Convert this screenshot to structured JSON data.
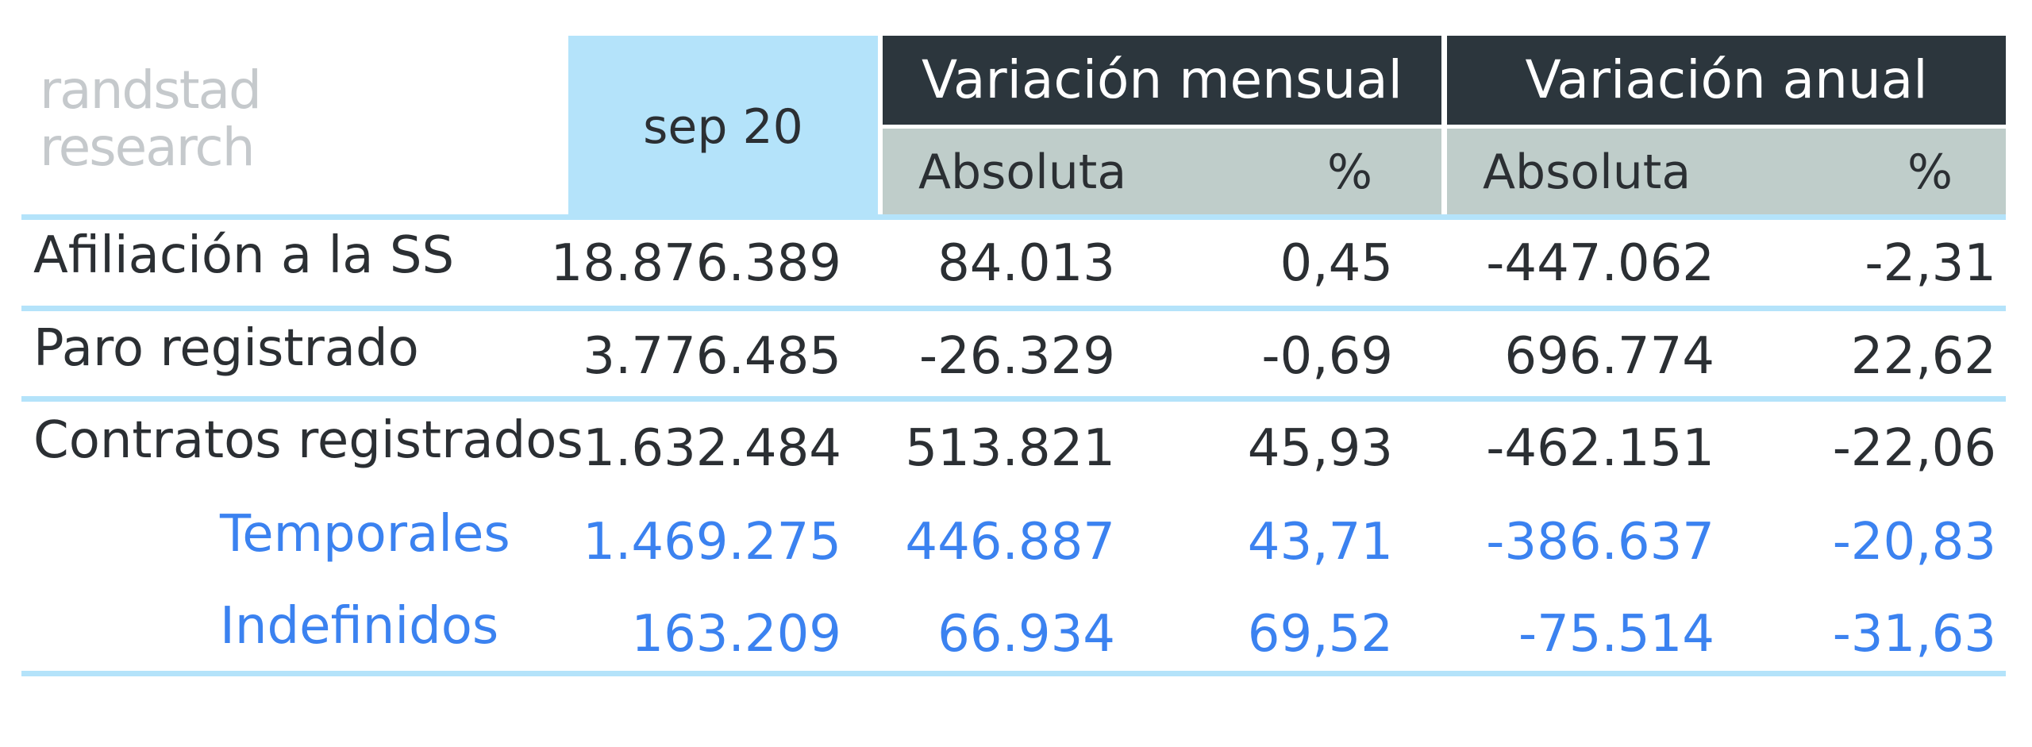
{
  "chart_data": {
    "type": "table",
    "logo_text": [
      "randstad",
      "research"
    ],
    "period": "sep 20",
    "group_headers": [
      "Variación mensual",
      "Variación anual"
    ],
    "sub_headers": [
      "Absoluta",
      "%",
      "Absoluta",
      "%"
    ],
    "rows": [
      {
        "label": "Afiliación a la SS",
        "values": [
          "18.876.389",
          "84.013",
          "0,45",
          "-447.062",
          "-2,31"
        ],
        "sub": false
      },
      {
        "label": "Paro registrado",
        "values": [
          "3.776.485",
          "-26.329",
          "-0,69",
          "696.774",
          "22,62"
        ],
        "sub": false
      },
      {
        "label": "Contratos registrados",
        "values": [
          "1.632.484",
          "513.821",
          "45,93",
          "-462.151",
          "-22,06"
        ],
        "sub": false
      },
      {
        "label": "Temporales",
        "values": [
          "1.469.275",
          "446.887",
          "43,71",
          "-386.637",
          "-20,83"
        ],
        "sub": true
      },
      {
        "label": "Indefinidos",
        "values": [
          "163.209",
          "66.934",
          "69,52",
          "-75.514",
          "-31,63"
        ],
        "sub": true
      }
    ],
    "colors": {
      "header_dark": "#2c363d",
      "header_sub": "#bfcdca",
      "period_bg": "#b4e3fa",
      "rule": "#b4e3fa",
      "text": "#2b2f33",
      "subrow_text": "#3b82f0"
    }
  }
}
